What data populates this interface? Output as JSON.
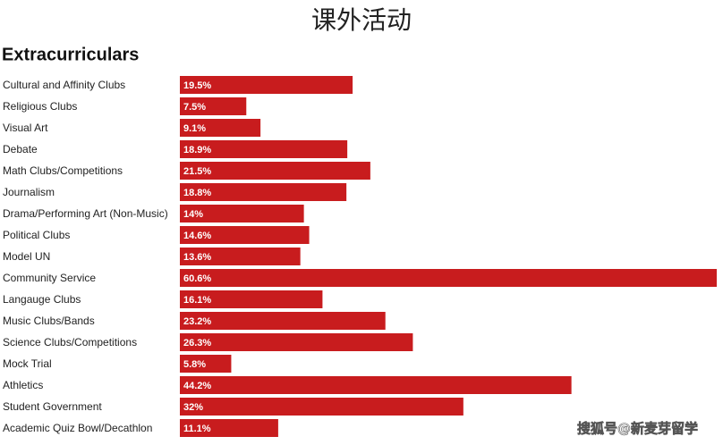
{
  "chart_data": {
    "type": "bar",
    "orientation": "horizontal",
    "title": "课外活动",
    "subtitle": "Extracurriculars",
    "categories": [
      "Cultural and Affinity Clubs",
      "Religious Clubs",
      "Visual Art",
      "Debate",
      "Math Clubs/Competitions",
      "Journalism",
      "Drama/Performing Art (Non-Music)",
      "Political Clubs",
      "Model UN",
      "Community Service",
      "Langauge Clubs",
      "Music Clubs/Bands",
      "Science Clubs/Competitions",
      "Mock Trial",
      "Athletics",
      "Student Government",
      "Academic Quiz Bowl/Decathlon"
    ],
    "values": [
      19.5,
      7.5,
      9.1,
      18.9,
      21.5,
      18.8,
      14,
      14.6,
      13.6,
      60.6,
      16.1,
      23.2,
      26.3,
      5.8,
      44.2,
      32,
      11.1
    ],
    "value_labels": [
      "19.5%",
      "7.5%",
      "9.1%",
      "18.9%",
      "21.5%",
      "18.8%",
      "14%",
      "14.6%",
      "13.6%",
      "60.6%",
      "16.1%",
      "23.2%",
      "26.3%",
      "5.8%",
      "44.2%",
      "32%",
      "11.1%"
    ],
    "color": "#c81c1e",
    "watermark": "搜狐号@新麦芽留学"
  }
}
